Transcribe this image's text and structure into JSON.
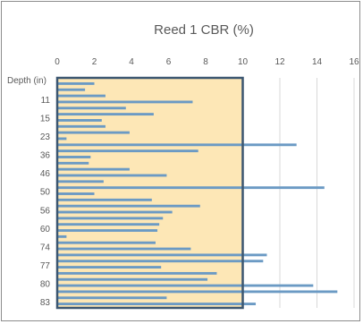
{
  "chart_data": {
    "type": "bar",
    "orientation": "horizontal",
    "title": "Reed 1 CBR (%)",
    "xlim": [
      0,
      16
    ],
    "x_ticks": [
      "0",
      "2",
      "4",
      "6",
      "8",
      "10",
      "12",
      "14",
      "16"
    ],
    "y_axis_title": "Depth (in)",
    "y_tick_labels": [
      "11",
      "15",
      "23",
      "36",
      "46",
      "50",
      "56",
      "60",
      "74",
      "77",
      "80",
      "83"
    ],
    "grid": "vertical",
    "highlight_region": {
      "x_range": [
        0,
        10
      ],
      "fill": "#fde7b6",
      "border": "#3b5670"
    },
    "series": [
      {
        "color": "#6b9ac4",
        "values": [
          2.0,
          1.5,
          2.6,
          7.3,
          3.7,
          5.2,
          2.4,
          2.6,
          3.9,
          0.5,
          12.9,
          7.6,
          1.8,
          1.7,
          3.9,
          5.9,
          2.5,
          14.4,
          2.0,
          5.1,
          7.7,
          6.2,
          5.7,
          5.5,
          5.4,
          0.5,
          5.3,
          7.2,
          11.3,
          11.1,
          5.6,
          8.6,
          8.1,
          13.8,
          15.1,
          5.9,
          10.7
        ]
      }
    ]
  }
}
